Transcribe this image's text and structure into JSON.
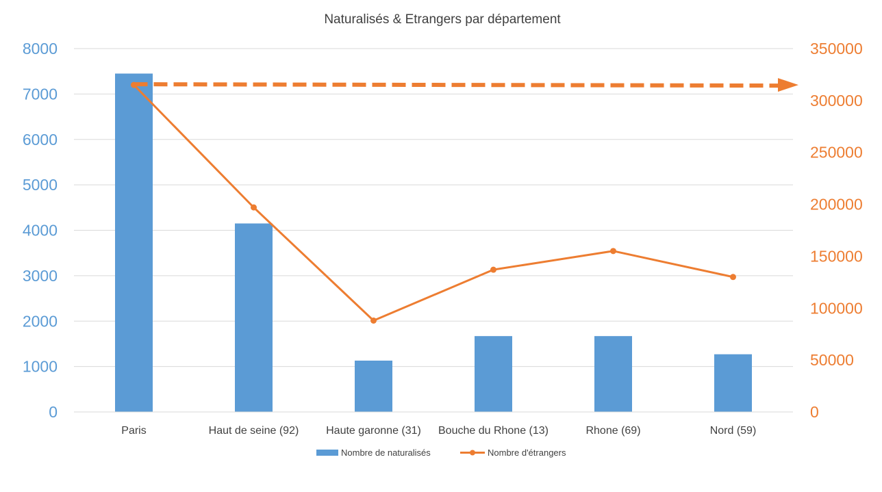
{
  "chart_data": {
    "type": "bar",
    "title": "Naturalisés & Etrangers par département",
    "categories": [
      "Paris",
      "Haut de seine (92)",
      "Haute garonne  (31)",
      "Bouche du Rhone (13)",
      "Rhone (69)",
      "Nord (59)"
    ],
    "series": [
      {
        "name": "Nombre de naturalisés",
        "type": "bar",
        "axis": "left",
        "color": "#5B9BD5",
        "values": [
          7450,
          4150,
          1130,
          1670,
          1670,
          1270
        ]
      },
      {
        "name": "Nombre d'étrangers",
        "type": "line",
        "axis": "right",
        "color": "#ED7D31",
        "values": [
          315000,
          197000,
          88000,
          137000,
          155000,
          130000
        ]
      }
    ],
    "y_left": {
      "range": [
        0,
        8000
      ],
      "ticks": [
        "0",
        "1000",
        "2000",
        "3000",
        "4000",
        "5000",
        "6000",
        "7000",
        "8000"
      ]
    },
    "y_right": {
      "range": [
        0,
        350000
      ],
      "ticks": [
        "0",
        "50000",
        "100000",
        "150000",
        "200000",
        "250000",
        "300000",
        "350000"
      ]
    },
    "grid": true,
    "legend": "bottom",
    "annotation": {
      "type": "dashed-arrow",
      "value": 315000,
      "axis": "right",
      "color": "#ED7D31"
    }
  }
}
